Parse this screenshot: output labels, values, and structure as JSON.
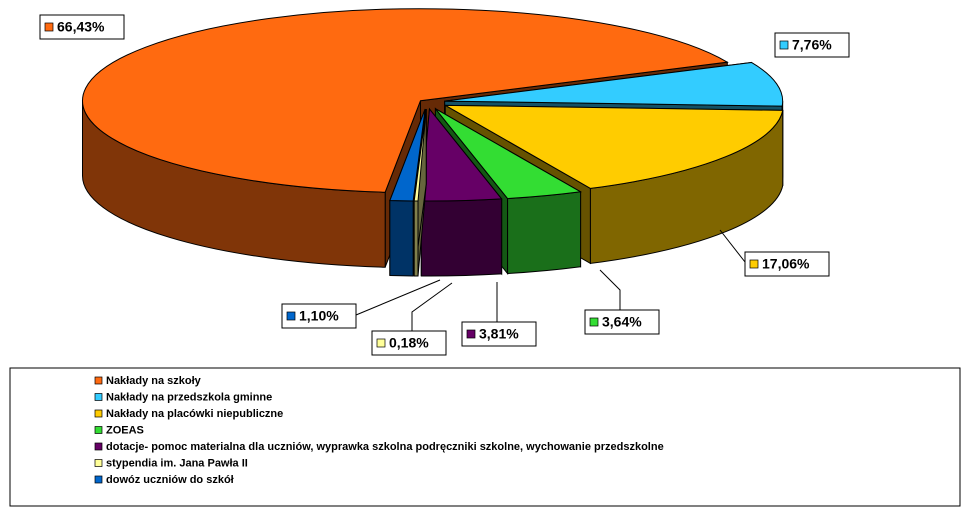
{
  "chart_data": {
    "type": "pie",
    "categories": [
      "Nakłady na szkoły",
      "Nakłady na przedszkola gminne",
      "Nakłady na placówki niepubliczne",
      "ZOEAS",
      "dotacje- pomoc materialna dla uczniów, wyprawka szkolna podręczniki szkolne, wychowanie przedszkolne",
      "stypendia im. Jana Pawła II",
      "dowóz uczniów do szkół"
    ],
    "values": [
      66.43,
      7.76,
      17.06,
      3.64,
      3.81,
      0.18,
      1.1
    ],
    "value_labels": [
      "66,43%",
      "7,76%",
      "17,06%",
      "3,64%",
      "3,81%",
      "0,18%",
      "1,10%"
    ],
    "colors": [
      "#ff6a10",
      "#33ccff",
      "#ffcc00",
      "#33dd33",
      "#660066",
      "#ffff99",
      "#0066cc"
    ]
  }
}
